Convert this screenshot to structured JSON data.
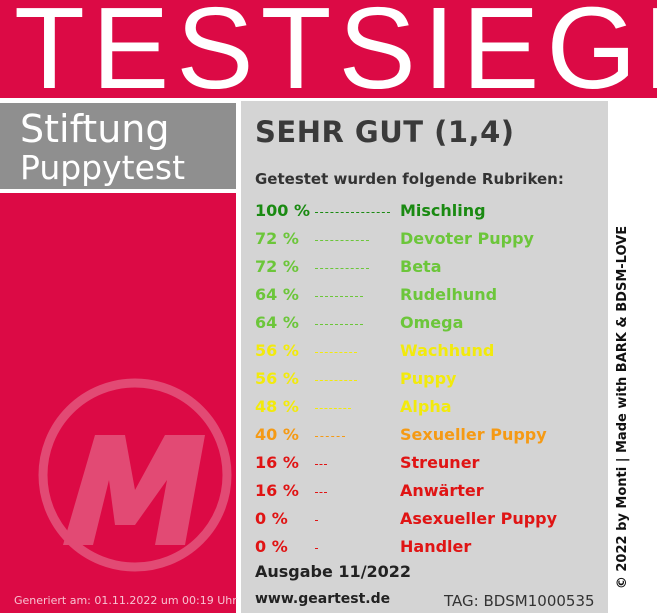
{
  "banner": {
    "title": "TESTSIEGER"
  },
  "seal": {
    "line1": "Stiftung",
    "line2": "Puppytest"
  },
  "grade": "SEHR GUT (1,4)",
  "intro": "Getestet wurden folgende Rubriken:",
  "colors": {
    "banner_red": "#dc0a45",
    "seal_gray": "#8f8f8f",
    "panel_gray": "#d4d4d4",
    "dark_green": "#1a8a12",
    "light_green": "#6cc63a",
    "yellow": "#f2ea0c",
    "orange": "#f59a14",
    "red": "#e01414"
  },
  "rubrics": [
    {
      "percent": "100 %",
      "value": 100,
      "name": "Mischling",
      "color": "#1a8a12"
    },
    {
      "percent": "72 %",
      "value": 72,
      "name": "Devoter Puppy",
      "color": "#6cc63a"
    },
    {
      "percent": "72 %",
      "value": 72,
      "name": "Beta",
      "color": "#6cc63a"
    },
    {
      "percent": "64 %",
      "value": 64,
      "name": "Rudelhund",
      "color": "#6cc63a"
    },
    {
      "percent": "64 %",
      "value": 64,
      "name": "Omega",
      "color": "#6cc63a"
    },
    {
      "percent": "56 %",
      "value": 56,
      "name": "Wachhund",
      "color": "#f2ea0c"
    },
    {
      "percent": "56 %",
      "value": 56,
      "name": "Puppy",
      "color": "#f2ea0c"
    },
    {
      "percent": "48 %",
      "value": 48,
      "name": "Alpha",
      "color": "#f2ea0c"
    },
    {
      "percent": "40 %",
      "value": 40,
      "name": "Sexueller Puppy",
      "color": "#f59a14"
    },
    {
      "percent": "16 %",
      "value": 16,
      "name": "Streuner",
      "color": "#e01414"
    },
    {
      "percent": "16 %",
      "value": 16,
      "name": "Anwärter",
      "color": "#e01414"
    },
    {
      "percent": "0 %",
      "value": 0,
      "name": "Asexueller Puppy",
      "color": "#e01414"
    },
    {
      "percent": "0 %",
      "value": 0,
      "name": "Handler",
      "color": "#e01414"
    }
  ],
  "edition": "Ausgabe 11/2022",
  "website": "www.geartest.de",
  "tag": "TAG: BDSM1000535",
  "generated": "Generiert am: 01.11.2022 um 00:19 Uhr",
  "copyright": "© 2022 by Monti | Made with BARK & BDSM-LOVE",
  "logo": {
    "icon": "m-logo-icon",
    "letter": "M"
  }
}
